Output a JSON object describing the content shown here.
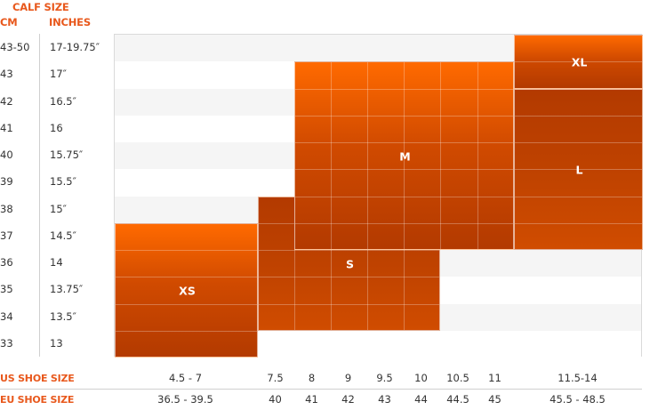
{
  "chart_data": {
    "type": "table",
    "title": "CALF SIZE",
    "col_headers": {
      "cm": "CM",
      "inches": "INCHES"
    },
    "rows": [
      {
        "cm": "43-50",
        "in": "17-19.75″"
      },
      {
        "cm": "43",
        "in": "17″"
      },
      {
        "cm": "42",
        "in": "16.5″"
      },
      {
        "cm": "41",
        "in": "16"
      },
      {
        "cm": "40",
        "in": "15.75″"
      },
      {
        "cm": "39",
        "in": "15.5″"
      },
      {
        "cm": "38",
        "in": "15″"
      },
      {
        "cm": "37",
        "in": "14.5″"
      },
      {
        "cm": "36",
        "in": "14"
      },
      {
        "cm": "35",
        "in": "13.75″"
      },
      {
        "cm": "34",
        "in": "13.5″"
      },
      {
        "cm": "33",
        "in": "13"
      }
    ],
    "us_label": "US SHOE SIZE",
    "eu_label": "EU SHOE SIZE",
    "shoe_sizes": [
      {
        "us": "4.5 - 7",
        "eu": "36.5 - 39.5"
      },
      {
        "us": "7.5",
        "eu": "40"
      },
      {
        "us": "8",
        "eu": "41"
      },
      {
        "us": "9",
        "eu": "42"
      },
      {
        "us": "9.5",
        "eu": "43"
      },
      {
        "us": "10",
        "eu": "44"
      },
      {
        "us": "10.5",
        "eu": "44.5"
      },
      {
        "us": "11",
        "eu": "45"
      },
      {
        "us": "11.5-14",
        "eu": "45.5 - 48.5"
      }
    ],
    "sizes": [
      {
        "label": "XS",
        "shoe_from": 0,
        "shoe_to": 0,
        "row_from": 7,
        "row_to": 11
      },
      {
        "label": "S",
        "shoe_from": 1,
        "shoe_to": 5,
        "row_from": 6,
        "row_to": 10
      },
      {
        "label": "M",
        "shoe_from": 2,
        "shoe_to": 7,
        "row_from": 1,
        "row_to": 7
      },
      {
        "label": "L",
        "shoe_from": 8,
        "shoe_to": 8,
        "row_from": 2,
        "row_to": 7
      },
      {
        "label": "XL",
        "shoe_from": 8,
        "shoe_to": 8,
        "row_from": 0,
        "row_to": 1
      }
    ],
    "colors": {
      "accent": "#e8581c",
      "block_light": "#ff6a00",
      "block_dark": "#b33a00",
      "stripe": "#f5f5f5"
    }
  }
}
